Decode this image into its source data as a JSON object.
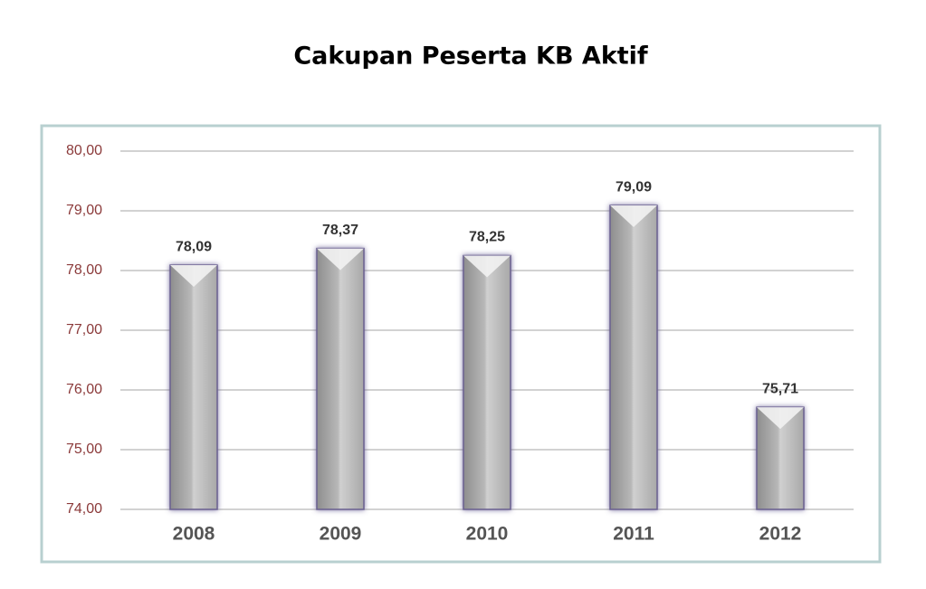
{
  "chart_data": {
    "type": "bar",
    "title": "Cakupan Peserta KB Aktif",
    "categories": [
      "2008",
      "2009",
      "2010",
      "2011",
      "2012"
    ],
    "values": [
      78.09,
      78.37,
      78.25,
      79.09,
      75.71
    ],
    "value_labels": [
      "78,09",
      "78,37",
      "78,25",
      "79,09",
      "75,71"
    ],
    "color": "#b4b4b4",
    "ylim": [
      74,
      80
    ],
    "yticks": [
      {
        "value": 74,
        "label": "74,00"
      },
      {
        "value": 75,
        "label": "75,00"
      },
      {
        "value": 76,
        "label": "76,00"
      },
      {
        "value": 77,
        "label": "77,00"
      },
      {
        "value": 78,
        "label": "78,00"
      },
      {
        "value": 79,
        "label": "79,00"
      },
      {
        "value": 80,
        "label": "80,00"
      }
    ],
    "grid": true
  }
}
